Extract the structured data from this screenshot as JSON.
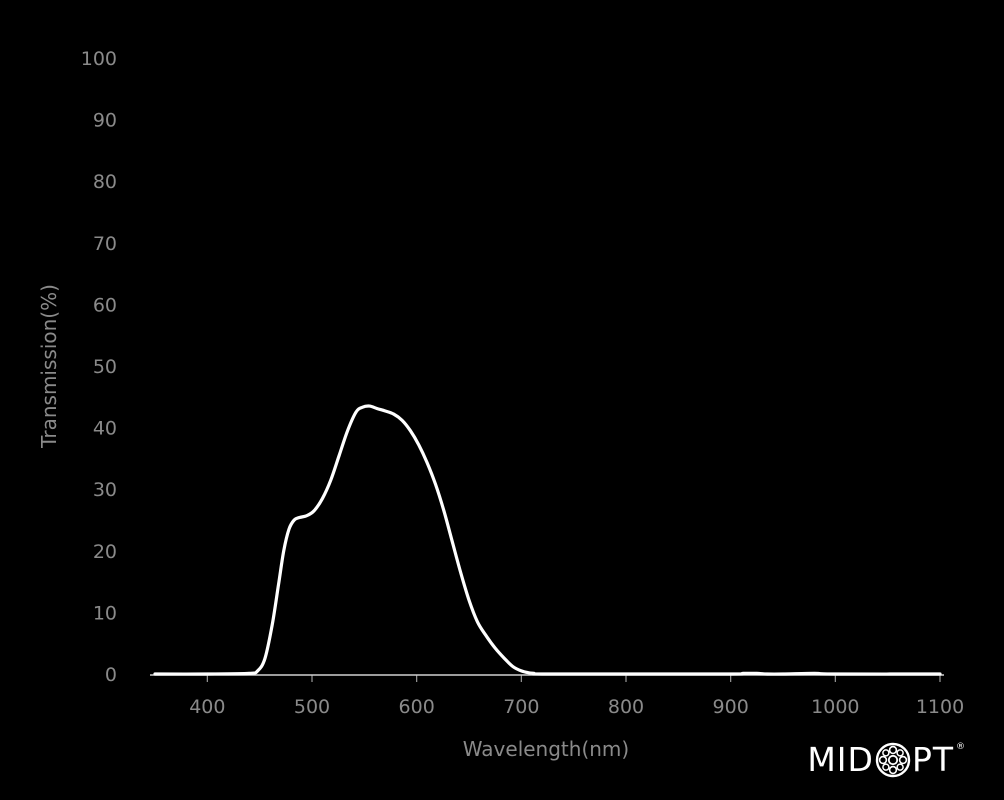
{
  "chart_data": {
    "type": "line",
    "title": "",
    "xlabel": "Wavelength(nm)",
    "ylabel": "Transmission(%)",
    "xlim": [
      350,
      1100
    ],
    "ylim": [
      0,
      100
    ],
    "x_ticks": [
      400,
      500,
      600,
      700,
      800,
      900,
      1000,
      1100
    ],
    "y_ticks": [
      0,
      10,
      20,
      30,
      40,
      50,
      60,
      70,
      80,
      90,
      100
    ],
    "grid": false,
    "series": [
      {
        "color": "#ffffff",
        "x": [
          350,
          400,
          440,
          448,
          455,
          462,
          468,
          473,
          478,
          483,
          488,
          495,
          502,
          510,
          518,
          526,
          534,
          542,
          548,
          555,
          562,
          570,
          578,
          586,
          594,
          602,
          610,
          618,
          626,
          634,
          642,
          650,
          658,
          666,
          675,
          684,
          692,
          700,
          707,
          712,
          720,
          800,
          900,
          912,
          925,
          935,
          950,
          980,
          1000,
          1100
        ],
        "y": [
          0,
          0,
          0.1,
          0.5,
          2.5,
          8,
          14.5,
          20,
          23.5,
          25,
          25.4,
          25.7,
          26.5,
          28.5,
          31.5,
          35.5,
          39.5,
          42.5,
          43.3,
          43.5,
          43.1,
          42.7,
          42.2,
          41.2,
          39.5,
          37.2,
          34.3,
          30.8,
          26.5,
          21.5,
          16.5,
          12,
          8.5,
          6.3,
          4.2,
          2.5,
          1.2,
          0.5,
          0.2,
          0.1,
          0,
          0,
          0,
          0.1,
          0.1,
          0,
          0,
          0.1,
          0,
          0
        ]
      }
    ]
  },
  "brand": {
    "logo_left": "MID",
    "logo_right": "PT",
    "logo_mark": "®"
  }
}
